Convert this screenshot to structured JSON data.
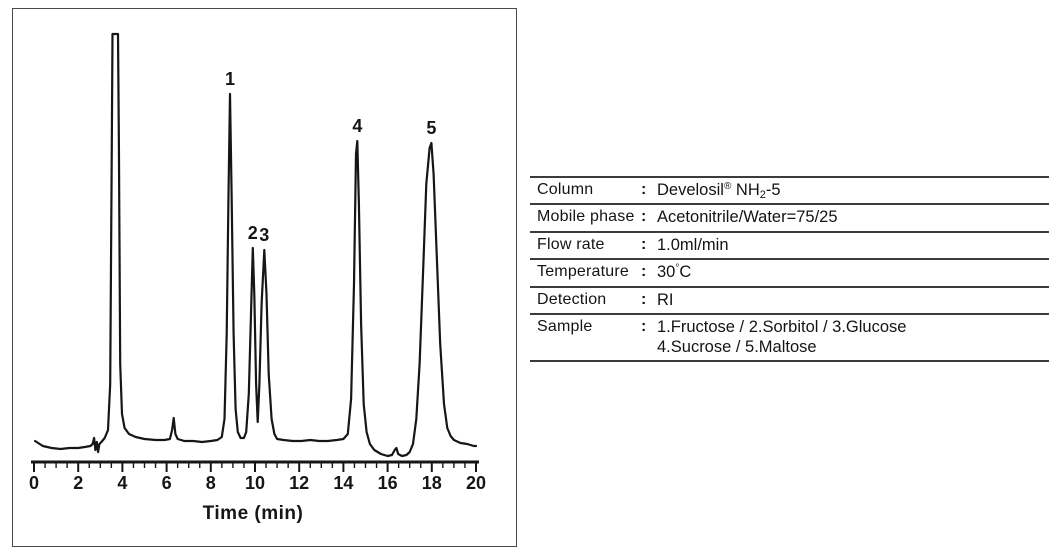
{
  "chart_data": {
    "type": "line",
    "subtype": "chromatogram",
    "title": "",
    "xlabel": "Time (min)",
    "ylabel": "",
    "x_range": [
      0,
      20
    ],
    "x_major_ticks": [
      0,
      2,
      4,
      6,
      8,
      10,
      12,
      14,
      16,
      18,
      20
    ],
    "x_minor_step": 0.5,
    "grid": false,
    "legend": false,
    "line_color": "#161616",
    "peaks": [
      {
        "label": "",
        "name": "solvent-front",
        "time_min": 3.6,
        "apex_h": 410,
        "clipped": true
      },
      {
        "label": "",
        "name": "minor-peak",
        "time_min": 6.3,
        "apex_h": 26,
        "clipped": false
      },
      {
        "label": "1",
        "compound": "Fructose",
        "time_min": 8.87,
        "apex_h": 350,
        "clipped": false
      },
      {
        "label": "2",
        "compound": "Sorbitol",
        "time_min": 9.9,
        "apex_h": 196,
        "clipped": false
      },
      {
        "label": "3",
        "compound": "Glucose",
        "time_min": 10.42,
        "apex_h": 194,
        "clipped": false
      },
      {
        "label": "4",
        "compound": "Sucrose",
        "time_min": 14.63,
        "apex_h": 303,
        "clipped": false
      },
      {
        "label": "5",
        "compound": "Maltose",
        "time_min": 17.98,
        "apex_h": 301,
        "clipped": false
      }
    ],
    "trace": [
      [
        0.05,
        3
      ],
      [
        0.4,
        -2
      ],
      [
        0.8,
        -4
      ],
      [
        1.2,
        -5
      ],
      [
        1.6,
        -4
      ],
      [
        2.0,
        -4
      ],
      [
        2.3,
        -3
      ],
      [
        2.55,
        -2
      ],
      [
        2.65,
        0
      ],
      [
        2.72,
        6
      ],
      [
        2.78,
        -6
      ],
      [
        2.84,
        2
      ],
      [
        2.9,
        -8
      ],
      [
        2.96,
        0
      ],
      [
        3.05,
        2
      ],
      [
        3.2,
        6
      ],
      [
        3.35,
        14
      ],
      [
        3.45,
        60
      ],
      [
        3.52,
        300
      ],
      [
        3.55,
        410
      ],
      [
        3.8,
        410
      ],
      [
        3.84,
        300
      ],
      [
        3.9,
        80
      ],
      [
        3.98,
        30
      ],
      [
        4.1,
        16
      ],
      [
        4.3,
        10
      ],
      [
        4.6,
        7
      ],
      [
        5.0,
        5
      ],
      [
        5.5,
        4
      ],
      [
        5.9,
        4
      ],
      [
        6.15,
        5
      ],
      [
        6.25,
        14
      ],
      [
        6.32,
        26
      ],
      [
        6.4,
        10
      ],
      [
        6.5,
        5
      ],
      [
        6.8,
        3
      ],
      [
        7.2,
        3
      ],
      [
        7.6,
        2
      ],
      [
        8.0,
        3
      ],
      [
        8.3,
        4
      ],
      [
        8.5,
        7
      ],
      [
        8.62,
        25
      ],
      [
        8.72,
        110
      ],
      [
        8.8,
        250
      ],
      [
        8.87,
        350
      ],
      [
        8.94,
        250
      ],
      [
        9.03,
        110
      ],
      [
        9.12,
        35
      ],
      [
        9.22,
        12
      ],
      [
        9.35,
        6
      ],
      [
        9.5,
        6
      ],
      [
        9.6,
        12
      ],
      [
        9.72,
        50
      ],
      [
        9.82,
        130
      ],
      [
        9.9,
        196
      ],
      [
        9.97,
        150
      ],
      [
        10.05,
        60
      ],
      [
        10.12,
        22
      ],
      [
        10.2,
        60
      ],
      [
        10.3,
        140
      ],
      [
        10.42,
        194
      ],
      [
        10.52,
        150
      ],
      [
        10.62,
        70
      ],
      [
        10.75,
        25
      ],
      [
        10.88,
        10
      ],
      [
        11.0,
        5
      ],
      [
        11.3,
        4
      ],
      [
        11.7,
        3
      ],
      [
        12.1,
        3
      ],
      [
        12.5,
        4
      ],
      [
        12.9,
        3
      ],
      [
        13.3,
        3
      ],
      [
        13.7,
        4
      ],
      [
        14.0,
        5
      ],
      [
        14.2,
        10
      ],
      [
        14.35,
        45
      ],
      [
        14.48,
        160
      ],
      [
        14.57,
        290
      ],
      [
        14.63,
        303
      ],
      [
        14.7,
        240
      ],
      [
        14.8,
        120
      ],
      [
        14.92,
        40
      ],
      [
        15.05,
        12
      ],
      [
        15.2,
        0
      ],
      [
        15.4,
        -6
      ],
      [
        15.7,
        -10
      ],
      [
        16.0,
        -12
      ],
      [
        16.2,
        -11
      ],
      [
        16.32,
        -6
      ],
      [
        16.4,
        -4
      ],
      [
        16.48,
        -10
      ],
      [
        16.65,
        -12
      ],
      [
        16.85,
        -11
      ],
      [
        17.0,
        -8
      ],
      [
        17.15,
        0
      ],
      [
        17.3,
        25
      ],
      [
        17.45,
        80
      ],
      [
        17.6,
        170
      ],
      [
        17.75,
        260
      ],
      [
        17.9,
        296
      ],
      [
        17.98,
        301
      ],
      [
        18.08,
        270
      ],
      [
        18.22,
        190
      ],
      [
        18.38,
        100
      ],
      [
        18.55,
        40
      ],
      [
        18.7,
        16
      ],
      [
        18.85,
        8
      ],
      [
        19.0,
        4
      ],
      [
        19.3,
        1
      ],
      [
        19.6,
        0
      ],
      [
        19.9,
        -2
      ],
      [
        20.0,
        -2
      ]
    ]
  },
  "conditions_table": {
    "rows": [
      {
        "label": "Column",
        "colon": ":",
        "value_parts": [
          {
            "t": "Develosil"
          },
          {
            "t": "®",
            "style": "sup"
          },
          {
            "t": " NH"
          },
          {
            "t": "2",
            "style": "sub"
          },
          {
            "t": "-5"
          }
        ]
      },
      {
        "label": "Mobile phase",
        "colon": ":",
        "value_parts": [
          {
            "t": "Acetonitrile/Water=75/25"
          }
        ]
      },
      {
        "label": "Flow rate",
        "colon": ":",
        "value_parts": [
          {
            "t": "1.0ml/min"
          }
        ]
      },
      {
        "label": "Temperature",
        "colon": ":",
        "value_parts": [
          {
            "t": "30"
          },
          {
            "t": "°",
            "style": "sup"
          },
          {
            "t": "C"
          }
        ]
      },
      {
        "label": "Detection",
        "colon": ":",
        "value_parts": [
          {
            "t": "RI"
          }
        ]
      },
      {
        "label": "Sample",
        "colon": ":",
        "value_lines": [
          "1.Fructose / 2.Sorbitol / 3.Glucose",
          "4.Sucrose / 5.Maltose"
        ]
      }
    ]
  }
}
